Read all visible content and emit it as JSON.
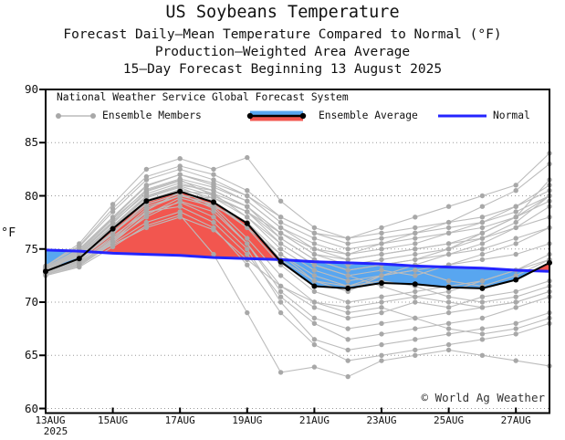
{
  "chart_data": {
    "type": "line",
    "title": "US Soybeans Temperature",
    "subtitle_lines": [
      "Forecast Daily–Mean Temperature Compared to Normal (°F)",
      "Production–Weighted Area Average",
      "15–Day Forecast Beginning 13 August 2025"
    ],
    "x_categories": [
      "13AUG",
      "14AUG",
      "15AUG",
      "16AUG",
      "17AUG",
      "18AUG",
      "19AUG",
      "20AUG",
      "21AUG",
      "22AUG",
      "23AUG",
      "24AUG",
      "25AUG",
      "26AUG",
      "27AUG",
      "28AUG"
    ],
    "x_tick_labels": [
      {
        "index": 0,
        "label": "13AUG",
        "sublabel": "2025"
      },
      {
        "index": 2,
        "label": "15AUG"
      },
      {
        "index": 4,
        "label": "17AUG"
      },
      {
        "index": 6,
        "label": "19AUG"
      },
      {
        "index": 8,
        "label": "21AUG"
      },
      {
        "index": 10,
        "label": "23AUG"
      },
      {
        "index": 12,
        "label": "25AUG"
      },
      {
        "index": 14,
        "label": "27AUG"
      }
    ],
    "ylabel": "°F",
    "ylim": [
      60,
      90
    ],
    "y_ticks": [
      {
        "value": 90,
        "label": "90"
      },
      {
        "value": 85,
        "label": "85"
      },
      {
        "value": 80,
        "label": "80"
      },
      {
        "value": 75,
        "label": "75"
      },
      {
        "value": 70,
        "label": "70"
      },
      {
        "value": 65,
        "label": "65"
      },
      {
        "value": 60,
        "label": "60"
      }
    ],
    "y_gridlines": [
      60,
      65,
      70,
      75,
      80,
      85
    ],
    "grid": "horizontal-dotted",
    "legend_position": "top-inside",
    "fill_meaning": {
      "above_normal": "red",
      "below_normal": "blue"
    },
    "series": {
      "ensemble_average": {
        "label": "Ensemble Average",
        "values": [
          72.9,
          74.1,
          76.9,
          79.5,
          80.4,
          79.4,
          77.4,
          73.8,
          71.5,
          71.3,
          71.8,
          71.7,
          71.4,
          71.3,
          72.1,
          73.7
        ]
      },
      "normal": {
        "label": "Normal",
        "values": [
          74.9,
          74.8,
          74.6,
          74.5,
          74.4,
          74.2,
          74.1,
          74.0,
          73.8,
          73.7,
          73.6,
          73.4,
          73.3,
          73.2,
          73.0,
          72.9
        ]
      },
      "members": {
        "label": "Ensemble Members",
        "count": 26,
        "values": [
          [
            72.8,
            74.0,
            76.5,
            79.0,
            80.0,
            79.2,
            77.0,
            74.5,
            72.0,
            71.0,
            72.5,
            73.0,
            72.0,
            71.5,
            72.5,
            74.0
          ],
          [
            73.2,
            74.8,
            77.8,
            80.5,
            81.5,
            80.0,
            78.5,
            75.5,
            73.5,
            72.5,
            73.0,
            72.5,
            73.5,
            74.0,
            74.5,
            75.5
          ],
          [
            72.6,
            73.6,
            75.8,
            78.0,
            79.5,
            78.5,
            75.5,
            71.5,
            69.5,
            68.5,
            69.0,
            70.0,
            69.5,
            70.5,
            71.0,
            72.0
          ],
          [
            73.4,
            75.2,
            78.5,
            81.5,
            82.5,
            81.5,
            80.0,
            77.5,
            76.0,
            75.0,
            75.5,
            76.0,
            76.5,
            77.0,
            78.0,
            79.5
          ],
          [
            72.9,
            74.5,
            77.2,
            80.0,
            81.0,
            80.5,
            79.0,
            76.5,
            74.5,
            73.5,
            74.0,
            74.5,
            75.0,
            76.0,
            77.5,
            80.0
          ],
          [
            73.1,
            74.3,
            76.8,
            79.5,
            80.5,
            79.0,
            76.0,
            72.5,
            70.0,
            69.0,
            69.5,
            68.5,
            67.5,
            67.0,
            67.5,
            68.5
          ],
          [
            72.7,
            73.8,
            76.2,
            78.5,
            79.0,
            77.5,
            74.5,
            70.5,
            68.0,
            66.5,
            67.0,
            67.5,
            68.0,
            68.5,
            69.5,
            70.5
          ],
          [
            73.3,
            75.0,
            78.0,
            81.0,
            82.0,
            81.0,
            79.5,
            77.0,
            75.5,
            74.5,
            75.0,
            75.5,
            76.5,
            77.5,
            79.0,
            81.0
          ],
          [
            72.5,
            73.4,
            75.5,
            77.5,
            78.5,
            77.0,
            73.5,
            69.0,
            66.0,
            64.5,
            65.0,
            65.5,
            66.0,
            66.5,
            67.0,
            68.0
          ],
          [
            73.0,
            74.6,
            77.5,
            80.2,
            81.2,
            80.2,
            78.0,
            75.0,
            73.0,
            72.0,
            72.5,
            73.5,
            74.5,
            75.5,
            77.0,
            79.0
          ],
          [
            72.8,
            73.9,
            76.0,
            78.8,
            80.0,
            79.8,
            78.5,
            76.0,
            74.0,
            73.0,
            73.5,
            74.0,
            74.5,
            75.0,
            76.0,
            77.0
          ],
          [
            73.2,
            74.4,
            77.0,
            79.8,
            80.8,
            79.5,
            77.0,
            73.5,
            71.0,
            70.0,
            70.5,
            71.0,
            71.5,
            72.0,
            73.0,
            74.0
          ],
          [
            72.6,
            73.5,
            75.6,
            78.2,
            79.8,
            79.0,
            77.5,
            74.5,
            72.5,
            71.5,
            72.0,
            71.5,
            70.5,
            70.0,
            70.5,
            71.5
          ],
          [
            73.4,
            75.5,
            79.2,
            82.5,
            83.5,
            82.5,
            83.6,
            79.5,
            77.0,
            76.0,
            76.5,
            77.0,
            77.5,
            78.0,
            79.0,
            80.5
          ],
          [
            72.9,
            74.1,
            76.6,
            79.2,
            80.2,
            78.8,
            75.5,
            71.0,
            68.5,
            67.5,
            68.0,
            68.5,
            69.0,
            69.5,
            70.0,
            71.0
          ],
          [
            73.1,
            74.7,
            77.6,
            80.6,
            81.6,
            80.8,
            79.5,
            77.0,
            75.0,
            74.0,
            74.5,
            75.0,
            75.5,
            76.0,
            77.0,
            78.0
          ],
          [
            72.7,
            73.7,
            75.9,
            78.4,
            79.4,
            78.0,
            75.0,
            70.0,
            66.5,
            65.5,
            66.0,
            66.5,
            67.0,
            67.5,
            68.0,
            69.0
          ],
          [
            73.3,
            74.9,
            77.9,
            80.9,
            82.0,
            81.2,
            80.0,
            78.0,
            76.5,
            75.5,
            76.0,
            76.5,
            77.0,
            77.5,
            78.5,
            80.0
          ],
          [
            72.5,
            73.3,
            75.2,
            77.2,
            78.2,
            74.5,
            69.0,
            63.4,
            63.9,
            63.0,
            64.5,
            65.0,
            65.5,
            65.0,
            64.5,
            64.0
          ],
          [
            73.0,
            74.4,
            77.1,
            79.9,
            80.9,
            80.0,
            78.5,
            76.5,
            75.0,
            74.5,
            75.5,
            76.5,
            77.5,
            79.0,
            80.5,
            83.0
          ],
          [
            72.8,
            74.2,
            76.9,
            79.6,
            80.6,
            79.8,
            78.0,
            75.5,
            73.5,
            72.5,
            71.5,
            70.5,
            70.0,
            69.5,
            70.0,
            71.0
          ],
          [
            73.2,
            74.6,
            77.4,
            80.4,
            81.4,
            80.5,
            79.0,
            76.0,
            74.0,
            73.0,
            73.5,
            74.0,
            75.0,
            76.5,
            78.0,
            81.5
          ],
          [
            72.6,
            73.6,
            75.7,
            78.6,
            80.4,
            80.2,
            79.0,
            76.5,
            74.5,
            74.0,
            74.5,
            75.0,
            75.5,
            76.5,
            78.0,
            80.0
          ],
          [
            73.4,
            75.3,
            78.8,
            81.8,
            82.8,
            82.0,
            80.5,
            78.0,
            76.5,
            76.0,
            77.0,
            78.0,
            79.0,
            80.0,
            81.0,
            84.0
          ],
          [
            72.9,
            73.8,
            75.4,
            77.0,
            78.0,
            76.8,
            74.0,
            71.5,
            70.0,
            69.5,
            70.0,
            70.5,
            71.0,
            72.0,
            73.0,
            74.5
          ],
          [
            73.1,
            74.0,
            76.4,
            79.4,
            80.4,
            79.4,
            77.5,
            74.0,
            72.0,
            71.5,
            72.5,
            73.0,
            73.5,
            74.5,
            75.5,
            77.0
          ]
        ]
      }
    }
  },
  "legend": {
    "source": "National Weather Service Global Forecast System",
    "members_label": "Ensemble Members",
    "average_label": "Ensemble Average",
    "normal_label": "Normal"
  },
  "watermark": "© World Ag Weather",
  "colors": {
    "above_fill": "#f2564f",
    "below_fill": "#58a6f0",
    "normal_line": "#2424ff",
    "average_line": "#000000",
    "member_line": "#bcbcbc",
    "member_dot": "#a8a8a8",
    "grid": "#999999",
    "axis": "#000000",
    "text": "#111111"
  }
}
